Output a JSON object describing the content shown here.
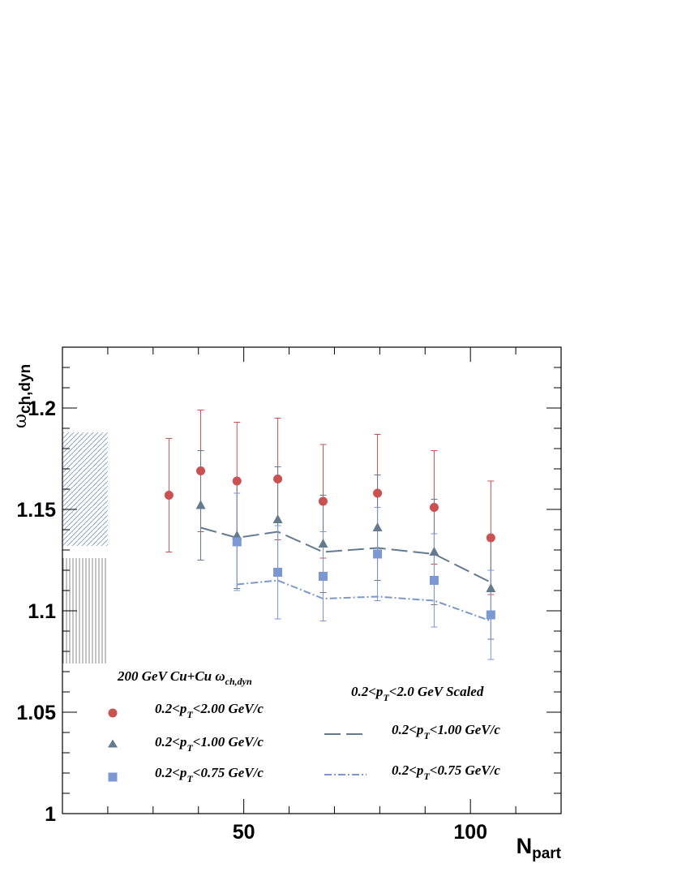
{
  "chart_data": {
    "type": "scatter",
    "xlabel": {
      "main": "N",
      "sub": "part"
    },
    "ylabel": {
      "main": "ω",
      "sub": "ch,dyn"
    },
    "xlim": [
      10,
      120
    ],
    "ylim": [
      1.0,
      1.23
    ],
    "x_ticks": [
      {
        "value": 50,
        "label": "50"
      },
      {
        "value": 100,
        "label": "100"
      }
    ],
    "y_ticks": [
      {
        "value": 1.0,
        "label": "1"
      },
      {
        "value": 1.05,
        "label": "1.05"
      },
      {
        "value": 1.1,
        "label": "1.1"
      },
      {
        "value": 1.15,
        "label": "1.15"
      },
      {
        "value": 1.2,
        "label": "1.2"
      }
    ],
    "systematic_bands": [
      {
        "x_range": [
          10,
          20
        ],
        "y_range": [
          1.132,
          1.188
        ],
        "pattern": "diagonal-hatch",
        "color": "#8fa3c2"
      },
      {
        "x_range": [
          10,
          20
        ],
        "y_range": [
          1.074,
          1.126
        ],
        "pattern": "vertical-hatch",
        "color": "#888888"
      }
    ],
    "series": [
      {
        "label": {
          "pre": "0.2<p",
          "sub": "T",
          "post": "<2.00 GeV/c"
        },
        "marker": "circle",
        "color": "#cd5050",
        "points": [
          {
            "x": 33.5,
            "y": 1.157,
            "err": 0.028
          },
          {
            "x": 40.5,
            "y": 1.169,
            "err": 0.03
          },
          {
            "x": 48.5,
            "y": 1.164,
            "err": 0.029
          },
          {
            "x": 57.5,
            "y": 1.165,
            "err": 0.03
          },
          {
            "x": 67.5,
            "y": 1.154,
            "err": 0.028
          },
          {
            "x": 79.5,
            "y": 1.158,
            "err": 0.029
          },
          {
            "x": 92.0,
            "y": 1.151,
            "err": 0.028
          },
          {
            "x": 104.5,
            "y": 1.136,
            "err": 0.028
          }
        ]
      },
      {
        "label": {
          "pre": "0.2<p",
          "sub": "T",
          "post": "<1.00 GeV/c"
        },
        "marker": "triangle",
        "color": "#647a8f",
        "points": [
          {
            "x": 40.5,
            "y": 1.152,
            "err": 0.027
          },
          {
            "x": 48.5,
            "y": 1.137,
            "err": 0.026
          },
          {
            "x": 57.5,
            "y": 1.145,
            "err": 0.026
          },
          {
            "x": 67.5,
            "y": 1.133,
            "err": 0.024
          },
          {
            "x": 79.5,
            "y": 1.141,
            "err": 0.026
          },
          {
            "x": 92.0,
            "y": 1.129,
            "err": 0.026
          },
          {
            "x": 104.5,
            "y": 1.111,
            "err": 0.025
          }
        ]
      },
      {
        "label": {
          "pre": "0.2<p",
          "sub": "T",
          "post": "<0.75 GeV/c"
        },
        "marker": "square",
        "color": "#7b97d4",
        "points": [
          {
            "x": 48.5,
            "y": 1.134,
            "err": 0.024
          },
          {
            "x": 57.5,
            "y": 1.119,
            "err": 0.023
          },
          {
            "x": 67.5,
            "y": 1.117,
            "err": 0.022
          },
          {
            "x": 79.5,
            "y": 1.128,
            "err": 0.023
          },
          {
            "x": 92.0,
            "y": 1.115,
            "err": 0.023
          },
          {
            "x": 104.5,
            "y": 1.098,
            "err": 0.022
          }
        ]
      }
    ],
    "scaled_curves": [
      {
        "label": {
          "pre": "0.2<p",
          "sub": "T",
          "post": "<1.00 GeV/c"
        },
        "style": "dashed",
        "color": "#647a8f",
        "x": [
          40.5,
          48.5,
          57.5,
          67.5,
          79.5,
          92.0,
          104.5
        ],
        "y": [
          1.141,
          1.136,
          1.139,
          1.129,
          1.131,
          1.128,
          1.114
        ]
      },
      {
        "label": {
          "pre": "0.2<p",
          "sub": "T",
          "post": "<0.75 GeV/c"
        },
        "style": "dash-dot",
        "color": "#7b97d4",
        "x": [
          48.5,
          57.5,
          67.5,
          79.5,
          92.0,
          104.5
        ],
        "y": [
          1.113,
          1.115,
          1.106,
          1.107,
          1.105,
          1.095
        ]
      }
    ],
    "legend_left": {
      "title": {
        "main": "200 GeV Cu+Cu ω",
        "sub": "ch,dyn"
      }
    },
    "legend_right": {
      "title": {
        "pre": "0.2<p",
        "sub": "T",
        "post": "<2.0 GeV Scaled"
      }
    }
  }
}
